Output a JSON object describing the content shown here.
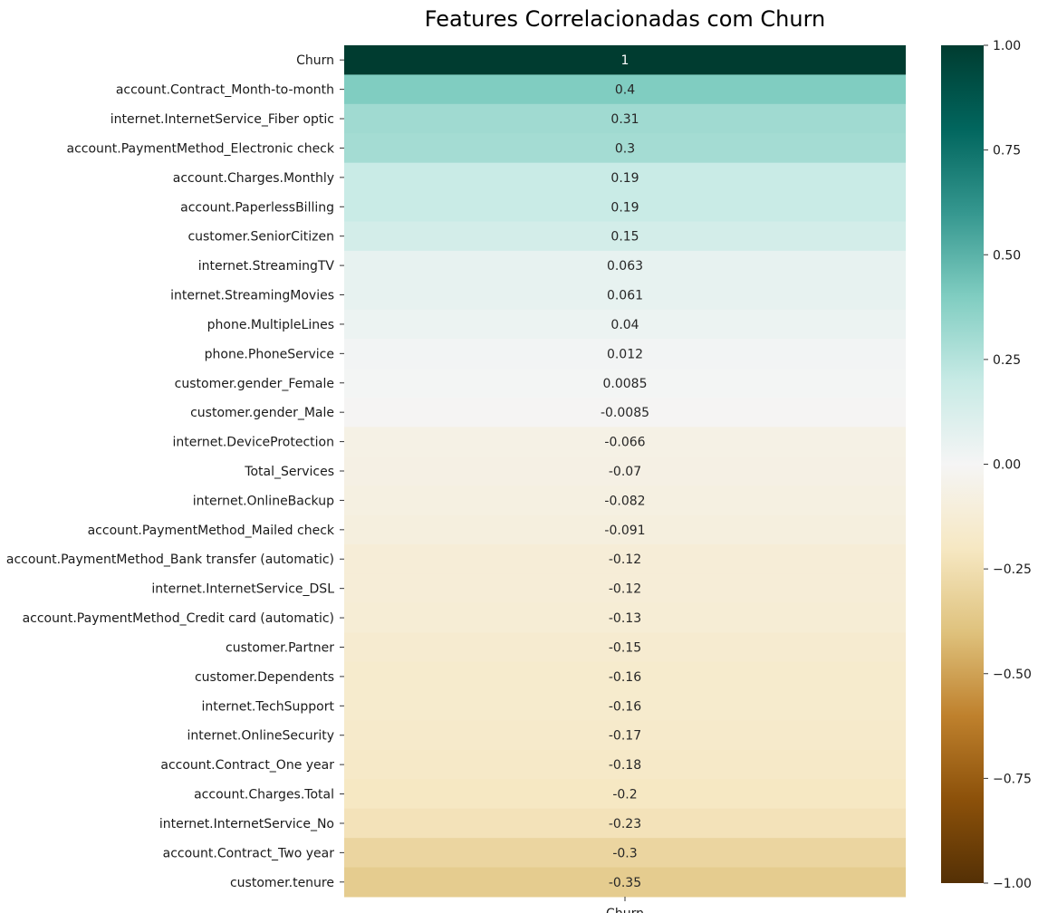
{
  "chart_data": {
    "type": "heatmap",
    "title": "Features Correlacionadas com Churn",
    "columns": [
      "Churn"
    ],
    "rows": [
      "Churn",
      "account.Contract_Month-to-month",
      "internet.InternetService_Fiber optic",
      "account.PaymentMethod_Electronic check",
      "account.Charges.Monthly",
      "account.PaperlessBilling",
      "customer.SeniorCitizen",
      "internet.StreamingTV",
      "internet.StreamingMovies",
      "phone.MultipleLines",
      "phone.PhoneService",
      "customer.gender_Female",
      "customer.gender_Male",
      "internet.DeviceProtection",
      "Total_Services",
      "internet.OnlineBackup",
      "account.PaymentMethod_Mailed check",
      "account.PaymentMethod_Bank transfer (automatic)",
      "internet.InternetService_DSL",
      "account.PaymentMethod_Credit card (automatic)",
      "customer.Partner",
      "customer.Dependents",
      "internet.TechSupport",
      "internet.OnlineSecurity",
      "account.Contract_One year",
      "account.Charges.Total",
      "internet.InternetService_No",
      "account.Contract_Two year",
      "customer.tenure"
    ],
    "values": [
      1,
      0.4,
      0.31,
      0.3,
      0.19,
      0.19,
      0.15,
      0.063,
      0.061,
      0.04,
      0.012,
      0.0085,
      -0.0085,
      -0.066,
      -0.07,
      -0.082,
      -0.091,
      -0.12,
      -0.12,
      -0.13,
      -0.15,
      -0.16,
      -0.16,
      -0.17,
      -0.18,
      -0.2,
      -0.23,
      -0.3,
      -0.35
    ],
    "annotations": [
      "1",
      "0.4",
      "0.31",
      "0.3",
      "0.19",
      "0.19",
      "0.15",
      "0.063",
      "0.061",
      "0.04",
      "0.012",
      "0.0085",
      "-0.0085",
      "-0.066",
      "-0.07",
      "-0.082",
      "-0.091",
      "-0.12",
      "-0.12",
      "-0.13",
      "-0.15",
      "-0.16",
      "-0.16",
      "-0.17",
      "-0.18",
      "-0.2",
      "-0.23",
      "-0.3",
      "-0.35"
    ],
    "colormap": "BrBG",
    "vmin": -1,
    "vmax": 1,
    "colorbar_ticks": [
      1.0,
      0.75,
      0.5,
      0.25,
      0.0,
      -0.25,
      -0.5,
      -0.75,
      -1.0
    ],
    "colorbar_tick_labels": [
      "1.00",
      "0.75",
      "0.50",
      "0.25",
      "0.00",
      "−0.25",
      "−0.50",
      "−0.75",
      "−1.00"
    ],
    "colormap_stops": [
      {
        "v": -1.0,
        "color": "#543005"
      },
      {
        "v": -0.8,
        "color": "#8c510a"
      },
      {
        "v": -0.6,
        "color": "#bf812d"
      },
      {
        "v": -0.4,
        "color": "#dfc27d"
      },
      {
        "v": -0.2,
        "color": "#f6e8c3"
      },
      {
        "v": 0.0,
        "color": "#f5f5f5"
      },
      {
        "v": 0.2,
        "color": "#c7eae5"
      },
      {
        "v": 0.4,
        "color": "#80cdc1"
      },
      {
        "v": 0.6,
        "color": "#35978f"
      },
      {
        "v": 0.8,
        "color": "#01665e"
      },
      {
        "v": 1.0,
        "color": "#003c30"
      }
    ]
  }
}
